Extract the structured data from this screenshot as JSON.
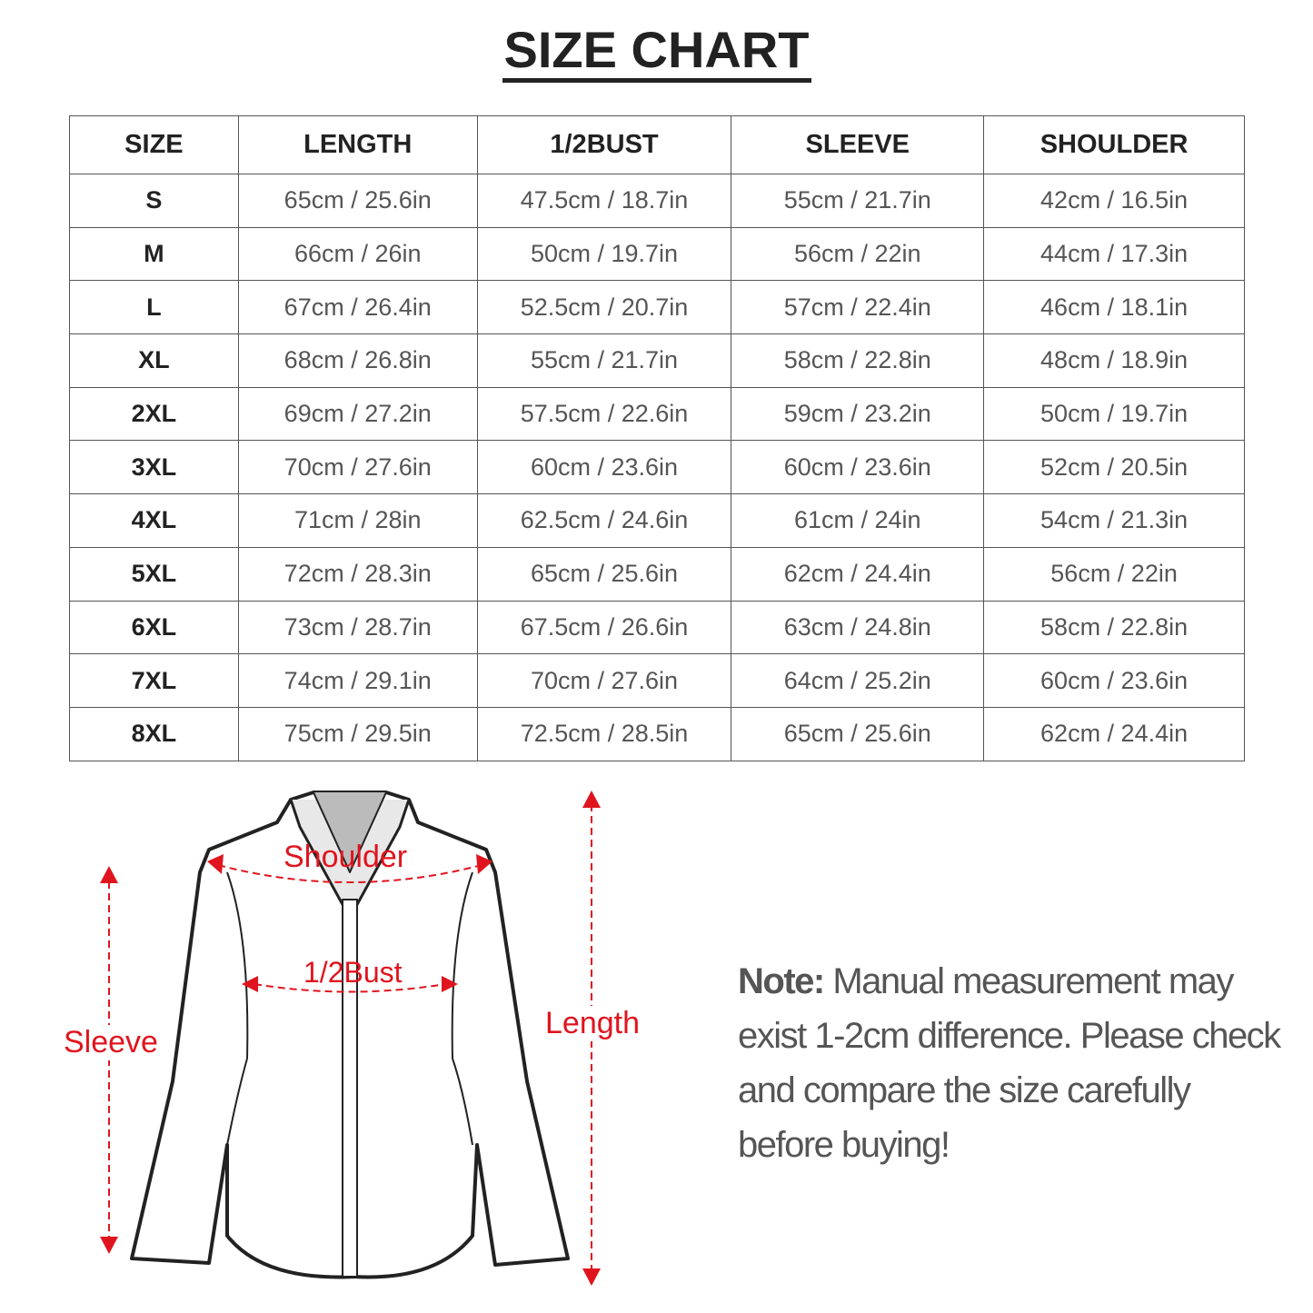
{
  "title": "SIZE CHART",
  "table": {
    "headers": [
      "SIZE",
      "LENGTH",
      "1/2BUST",
      "SLEEVE",
      "SHOULDER"
    ],
    "rows": [
      [
        "S",
        "65cm / 25.6in",
        "47.5cm / 18.7in",
        "55cm / 21.7in",
        "42cm / 16.5in"
      ],
      [
        "M",
        "66cm / 26in",
        "50cm / 19.7in",
        "56cm / 22in",
        "44cm / 17.3in"
      ],
      [
        "L",
        "67cm / 26.4in",
        "52.5cm / 20.7in",
        "57cm / 22.4in",
        "46cm / 18.1in"
      ],
      [
        "XL",
        "68cm / 26.8in",
        "55cm / 21.7in",
        "58cm / 22.8in",
        "48cm / 18.9in"
      ],
      [
        "2XL",
        "69cm / 27.2in",
        "57.5cm / 22.6in",
        "59cm / 23.2in",
        "50cm / 19.7in"
      ],
      [
        "3XL",
        "70cm / 27.6in",
        "60cm / 23.6in",
        "60cm / 23.6in",
        "52cm / 20.5in"
      ],
      [
        "4XL",
        "71cm / 28in",
        "62.5cm / 24.6in",
        "61cm / 24in",
        "54cm / 21.3in"
      ],
      [
        "5XL",
        "72cm / 28.3in",
        "65cm / 25.6in",
        "62cm / 24.4in",
        "56cm / 22in"
      ],
      [
        "6XL",
        "73cm / 28.7in",
        "67.5cm / 26.6in",
        "63cm / 24.8in",
        "58cm / 22.8in"
      ],
      [
        "7XL",
        "74cm / 29.1in",
        "70cm / 27.6in",
        "64cm / 25.2in",
        "60cm / 23.6in"
      ],
      [
        "8XL",
        "75cm / 29.5in",
        "72.5cm / 28.5in",
        "65cm / 25.6in",
        "62cm / 24.4in"
      ]
    ]
  },
  "diagram": {
    "labels": {
      "shoulder": "Shoulder",
      "bust": "1/2Bust",
      "sleeve": "Sleeve",
      "length": "Length"
    },
    "annotation_color": "#e0141e"
  },
  "note": {
    "label": "Note:",
    "text": "Manual measurement may exist 1-2cm difference. Please check and compare the size carefully before buying!"
  }
}
